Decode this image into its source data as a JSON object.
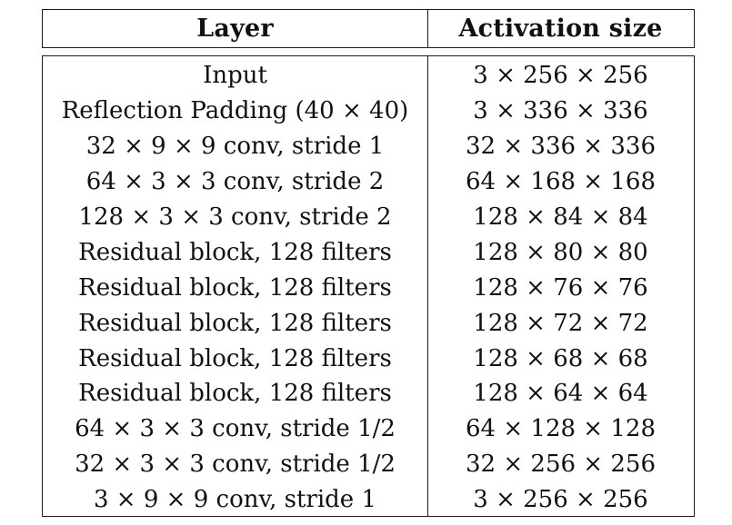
{
  "table": {
    "headers": {
      "layer": "Layer",
      "activation": "Activation size"
    },
    "rows": [
      {
        "layer": "Input",
        "activation": "3 × 256 × 256"
      },
      {
        "layer": "Reflection Padding (40 × 40)",
        "activation": "3 × 336 × 336"
      },
      {
        "layer": "32 × 9 × 9 conv, stride 1",
        "activation": "32 × 336 × 336"
      },
      {
        "layer": "64 × 3 × 3 conv, stride 2",
        "activation": "64 × 168 × 168"
      },
      {
        "layer": "128 × 3 × 3 conv, stride 2",
        "activation": "128 × 84 × 84"
      },
      {
        "layer": "Residual block, 128 filters",
        "activation": "128 × 80 × 80"
      },
      {
        "layer": "Residual block, 128 filters",
        "activation": "128 × 76 × 76"
      },
      {
        "layer": "Residual block, 128 filters",
        "activation": "128 × 72 × 72"
      },
      {
        "layer": "Residual block, 128 filters",
        "activation": "128 × 68 × 68"
      },
      {
        "layer": "Residual block, 128 filters",
        "activation": "128 × 64 × 64"
      },
      {
        "layer": "64 × 3 × 3 conv, stride 1/2",
        "activation": "64 × 128 × 128"
      },
      {
        "layer": "32 × 3 × 3 conv, stride 1/2",
        "activation": "32 × 256 × 256"
      },
      {
        "layer": "3 × 9 × 9 conv, stride 1",
        "activation": "3 × 256 × 256"
      }
    ]
  }
}
